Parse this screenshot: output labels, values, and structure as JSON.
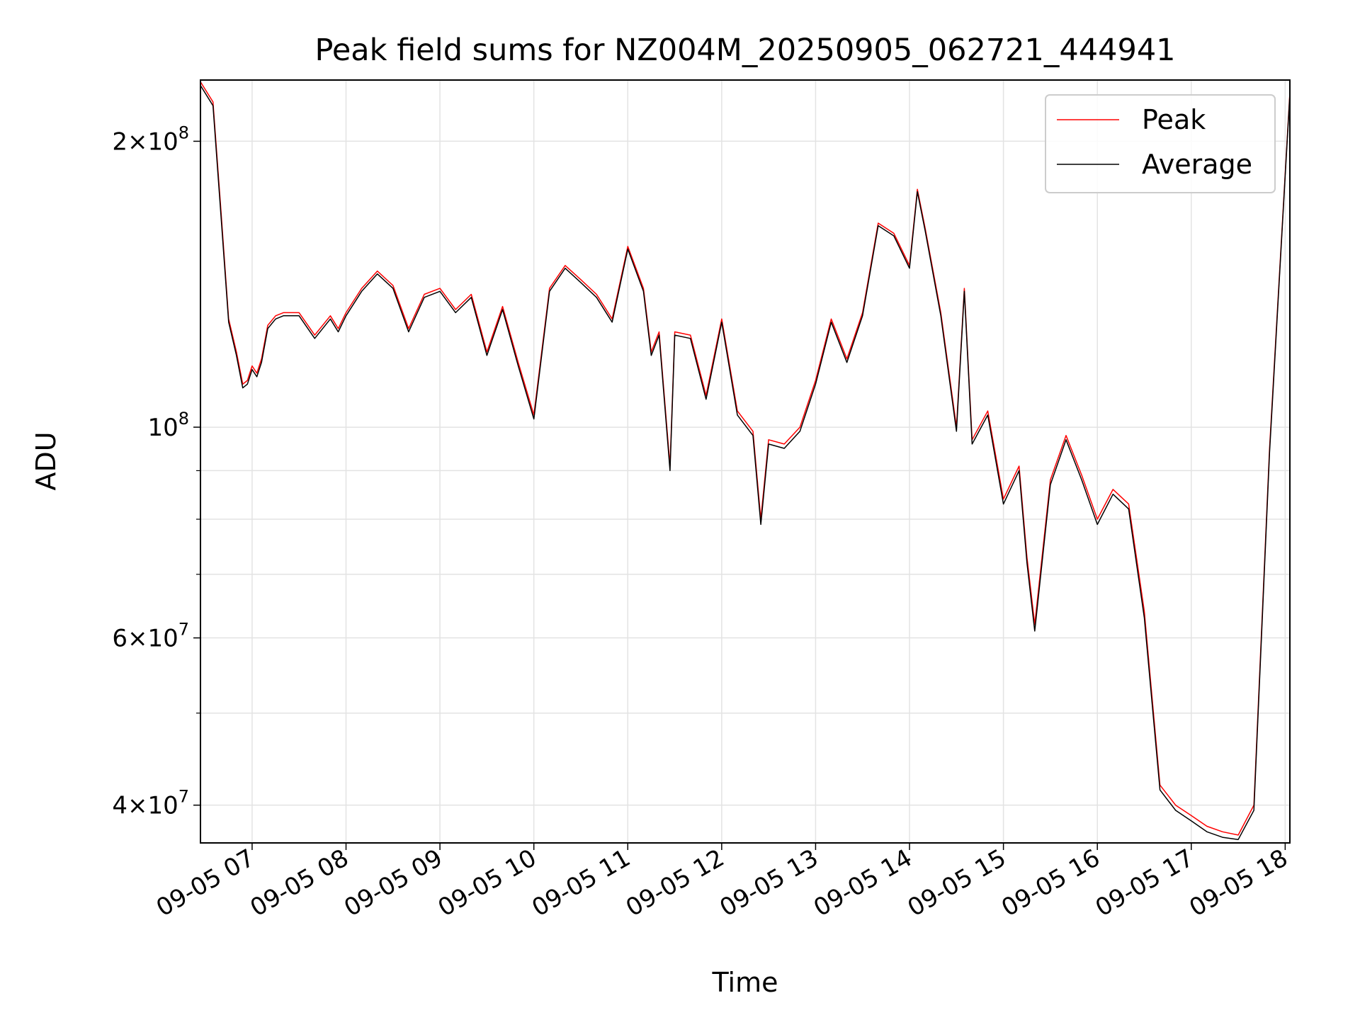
{
  "chart_data": {
    "type": "line",
    "title": "Peak field sums for NZ004M_20250905_062721_444941",
    "xlabel": "Time",
    "ylabel": "ADU",
    "yscale": "log",
    "grid": true,
    "legend_position": "top-right",
    "xlim": [
      "09-05 06:27",
      "09-05 18:03"
    ],
    "ylim": [
      36500000,
      232000000
    ],
    "x_ticks": [
      "09-05 07",
      "09-05 08",
      "09-05 09",
      "09-05 10",
      "09-05 11",
      "09-05 12",
      "09-05 13",
      "09-05 14",
      "09-05 15",
      "09-05 16",
      "09-05 17",
      "09-05 18"
    ],
    "y_major_ticks": [
      {
        "value": 40000000,
        "mantissa": "4",
        "exponent": "7"
      },
      {
        "value": 60000000,
        "mantissa": "6",
        "exponent": "7"
      },
      {
        "value": 100000000,
        "mantissa": "",
        "exponent": "8"
      },
      {
        "value": 200000000,
        "mantissa": "2",
        "exponent": "8"
      }
    ],
    "y_minor_ticks": [
      50000000,
      70000000,
      80000000,
      90000000,
      300000000
    ],
    "series_style": [
      {
        "name": "Peak",
        "color": "#ff0000"
      },
      {
        "name": "Average",
        "color": "#000000"
      }
    ],
    "x": [
      "06:27",
      "06:35",
      "06:40",
      "06:45",
      "06:50",
      "06:54",
      "06:57",
      "07:00",
      "07:03",
      "07:06",
      "07:10",
      "07:15",
      "07:20",
      "07:30",
      "07:40",
      "07:50",
      "07:55",
      "08:00",
      "08:10",
      "08:20",
      "08:30",
      "08:40",
      "08:50",
      "09:00",
      "09:10",
      "09:20",
      "09:30",
      "09:40",
      "09:50",
      "10:00",
      "10:10",
      "10:20",
      "10:30",
      "10:40",
      "10:50",
      "11:00",
      "11:10",
      "11:15",
      "11:20",
      "11:27",
      "11:30",
      "11:40",
      "11:50",
      "12:00",
      "12:10",
      "12:20",
      "12:25",
      "12:30",
      "12:40",
      "12:50",
      "13:00",
      "13:10",
      "13:20",
      "13:30",
      "13:40",
      "13:50",
      "14:00",
      "14:05",
      "14:10",
      "14:20",
      "14:30",
      "14:35",
      "14:40",
      "14:50",
      "15:00",
      "15:10",
      "15:15",
      "15:20",
      "15:30",
      "15:40",
      "15:50",
      "16:00",
      "16:10",
      "16:20",
      "16:30",
      "16:40",
      "16:50",
      "17:00",
      "17:10",
      "17:20",
      "17:30",
      "17:40",
      "17:50",
      "18:00",
      "18:03"
    ],
    "series": [
      {
        "name": "Peak",
        "values": [
          231000000,
          220000000,
          170000000,
          130000000,
          120000000,
          111000000,
          112000000,
          116000000,
          114000000,
          118000000,
          128000000,
          131000000,
          132000000,
          132000000,
          125000000,
          131000000,
          127000000,
          132000000,
          140000000,
          146000000,
          141000000,
          127000000,
          138000000,
          140000000,
          133000000,
          138000000,
          120000000,
          134000000,
          117000000,
          103000000,
          140000000,
          148000000,
          143000000,
          138000000,
          130000000,
          155000000,
          140000000,
          120000000,
          126000000,
          91000000,
          126000000,
          125000000,
          108000000,
          130000000,
          104000000,
          99000000,
          80000000,
          97000000,
          96000000,
          100000000,
          112000000,
          130000000,
          118000000,
          132000000,
          164000000,
          160000000,
          148000000,
          178000000,
          162000000,
          132000000,
          100000000,
          140000000,
          97000000,
          104000000,
          84000000,
          91000000,
          73000000,
          62000000,
          88000000,
          98000000,
          89000000,
          80000000,
          86000000,
          83000000,
          64000000,
          42000000,
          40000000,
          39000000,
          38000000,
          37500000,
          37200000,
          40000000,
          95000000,
          185000000,
          225000000
        ]
      },
      {
        "name": "Average",
        "values": [
          229000000,
          218000000,
          168000000,
          129000000,
          119000000,
          110000000,
          111000000,
          115000000,
          113000000,
          117000000,
          127000000,
          130000000,
          131000000,
          131000000,
          124000000,
          130000000,
          126000000,
          131000000,
          139000000,
          145000000,
          140000000,
          126000000,
          137000000,
          139000000,
          132000000,
          137000000,
          119000000,
          133000000,
          116000000,
          102000000,
          139000000,
          147000000,
          142000000,
          137000000,
          129000000,
          154000000,
          139000000,
          119000000,
          125000000,
          90000000,
          125000000,
          124000000,
          107000000,
          129000000,
          103000000,
          98000000,
          79000000,
          96000000,
          95000000,
          99000000,
          111000000,
          129000000,
          117000000,
          131000000,
          163000000,
          159000000,
          147000000,
          177000000,
          161000000,
          131000000,
          99000000,
          139000000,
          96000000,
          103000000,
          83000000,
          90000000,
          72000000,
          61000000,
          87000000,
          97000000,
          88000000,
          79000000,
          85000000,
          82000000,
          63000000,
          41500000,
          39500000,
          38500000,
          37500000,
          37000000,
          36800000,
          39500000,
          94000000,
          184000000,
          224000000
        ]
      }
    ]
  }
}
